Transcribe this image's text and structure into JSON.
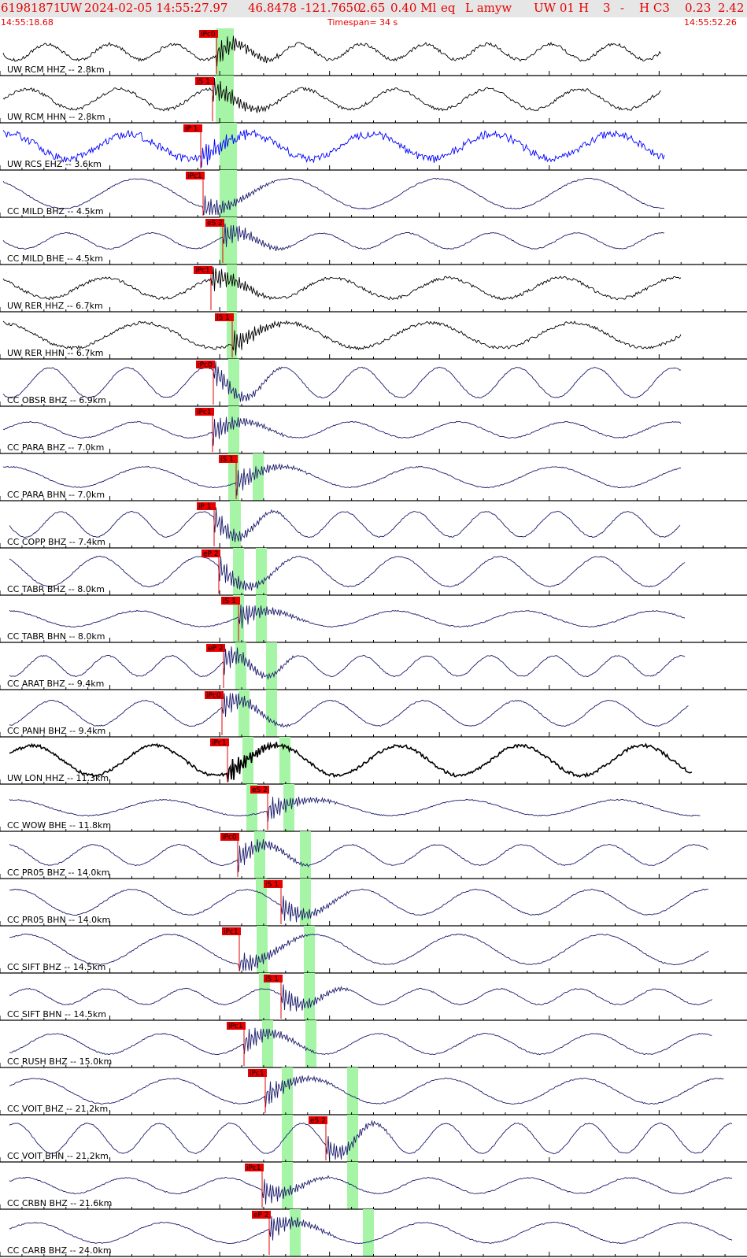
{
  "header": {
    "event_id": "61981871",
    "network": "UW",
    "datetime": "2024-02-05 14:55:27.97",
    "lat": "46.8478",
    "lon": "-121.7650",
    "depth": "2.65",
    "magnitude": "0.40 Ml",
    "etype": "eq",
    "flags": "L amyw",
    "source": "UW 01",
    "quality": "H",
    "count": "3",
    "dash": "-",
    "class": "H C3",
    "rms": "0.23",
    "erh": "2.42"
  },
  "subheader": {
    "start_time": "14:55:18.68",
    "timespan": "Timespan=  34 s",
    "end_time": "14:55:52.26"
  },
  "colors": {
    "header_bg": "#e6e6e6",
    "header_text": "#e60000",
    "pick": "#e60000",
    "window": "#a6f5a6",
    "trace_dark": "#1c1c6e",
    "trace_black": "#000000",
    "trace_blue": "#0000ff"
  },
  "channels": [
    {
      "label": "UW RCM HHZ -- 2.8km",
      "pick": "iPc0",
      "tone": "black"
    },
    {
      "label": "UW RCM HHN -- 2.8km",
      "pick": "iS 1",
      "tone": "black"
    },
    {
      "label": "UW RCS EHZ -- 3.6km",
      "pick": "iP 1",
      "tone": "blue"
    },
    {
      "label": "CC MILD BHZ -- 4.5km",
      "pick": "iPc1",
      "tone": "dark"
    },
    {
      "label": "CC MILD BHE -- 4.5km",
      "pick": "eS 2",
      "tone": "dark"
    },
    {
      "label": "UW RER HHZ -- 6.7km",
      "pick": "iPc1",
      "tone": "black"
    },
    {
      "label": "UW RER HHN -- 6.7km",
      "pick": "iS 1",
      "tone": "black"
    },
    {
      "label": "CC OBSR BHZ -- 6.9km",
      "pick": "iPc0",
      "tone": "dark"
    },
    {
      "label": "CC PARA BHZ -- 7.0km",
      "pick": "iPc1",
      "tone": "dark"
    },
    {
      "label": "CC PARA BHN -- 7.0km",
      "pick": "iS 1",
      "tone": "dark"
    },
    {
      "label": "CC COPP BHZ -- 7.4km",
      "pick": "iP 1",
      "tone": "dark"
    },
    {
      "label": "CC TABR BHZ -- 8.0km",
      "pick": "eP 2",
      "tone": "dark"
    },
    {
      "label": "CC TABR BHN -- 8.0km",
      "pick": "iS 1",
      "tone": "dark"
    },
    {
      "label": "CC ARAT BHZ -- 9.4km",
      "pick": "eP 2",
      "tone": "dark"
    },
    {
      "label": "CC PANH BHZ -- 9.4km",
      "pick": "iPc0",
      "tone": "dark"
    },
    {
      "label": "UW LON HHZ -- 11.3km",
      "pick": "iPc1",
      "tone": "black"
    },
    {
      "label": "CC WOW BHE -- 11.8km",
      "pick": "eS 2",
      "tone": "dark"
    },
    {
      "label": "CC PR05 BHZ -- 14.0km",
      "pick": "iPc0",
      "tone": "dark"
    },
    {
      "label": "CC PR05 BHN -- 14.0km",
      "pick": "iS 1",
      "tone": "dark"
    },
    {
      "label": "CC SIFT BHZ -- 14.5km",
      "pick": "iPc1",
      "tone": "dark"
    },
    {
      "label": "CC SIFT BHN -- 14.5km",
      "pick": "iS 1",
      "tone": "dark"
    },
    {
      "label": "CC RUSH BHZ -- 15.0km",
      "pick": "iPc1",
      "tone": "dark"
    },
    {
      "label": "CC VOIT BHZ -- 21.2km",
      "pick": "iPc1",
      "tone": "dark"
    },
    {
      "label": "CC VOIT BHN -- 21.2km",
      "pick": "eS 2",
      "tone": "dark"
    },
    {
      "label": "CC CRBN BHZ -- 21.6km",
      "pick": "iPc1",
      "tone": "dark"
    },
    {
      "label": "CC CARB BHZ -- 24.0km",
      "pick": "eP 2",
      "tone": "dark"
    }
  ]
}
